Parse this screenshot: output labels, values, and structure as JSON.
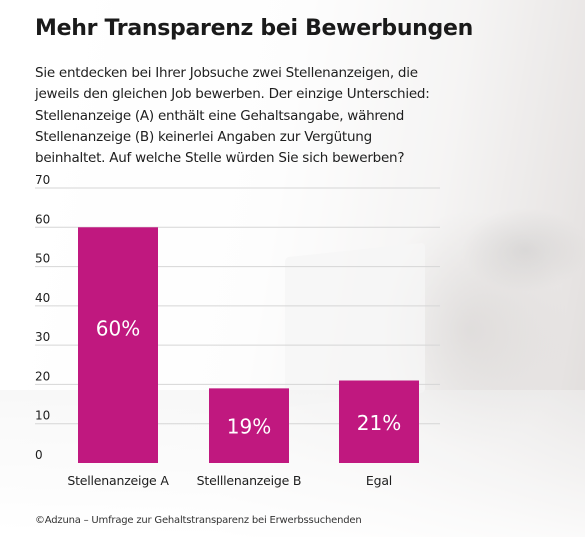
{
  "title": "Mehr Transparenz bei Bewerbungen",
  "question": "Sie entdecken bei Ihrer Jobsuche zwei Stellenanzeigen, die\njeweils den gleichen Job bewerben. Der einzige Unterschied:\nStellenanzeige (A) enthält eine Gehaltsangabe, während\nStellenanzeige (B) keinerlei Angaben zur Vergütung\nbeinhaltet. Auf welche Stelle würden Sie sich bewerben?",
  "source": "©Adzuna – Umfrage zur Gehaltstransparenz bei Erwerbssuchenden",
  "colors": {
    "bar": "#c0187f",
    "bar_label": "#ffffff",
    "grid": "#d6d6d6",
    "text": "#1e1e1e"
  },
  "chart_data": {
    "type": "bar",
    "categories": [
      "Stellenanzeige A",
      "Stelllenanzeige B",
      "Egal"
    ],
    "values": [
      60,
      19,
      21
    ],
    "data_labels": [
      "60%",
      "19%",
      "21%"
    ],
    "ylim": [
      0,
      70
    ],
    "yticks": [
      "0",
      "10",
      "20",
      "30",
      "40",
      "50",
      "60",
      "70"
    ],
    "grid": true
  }
}
